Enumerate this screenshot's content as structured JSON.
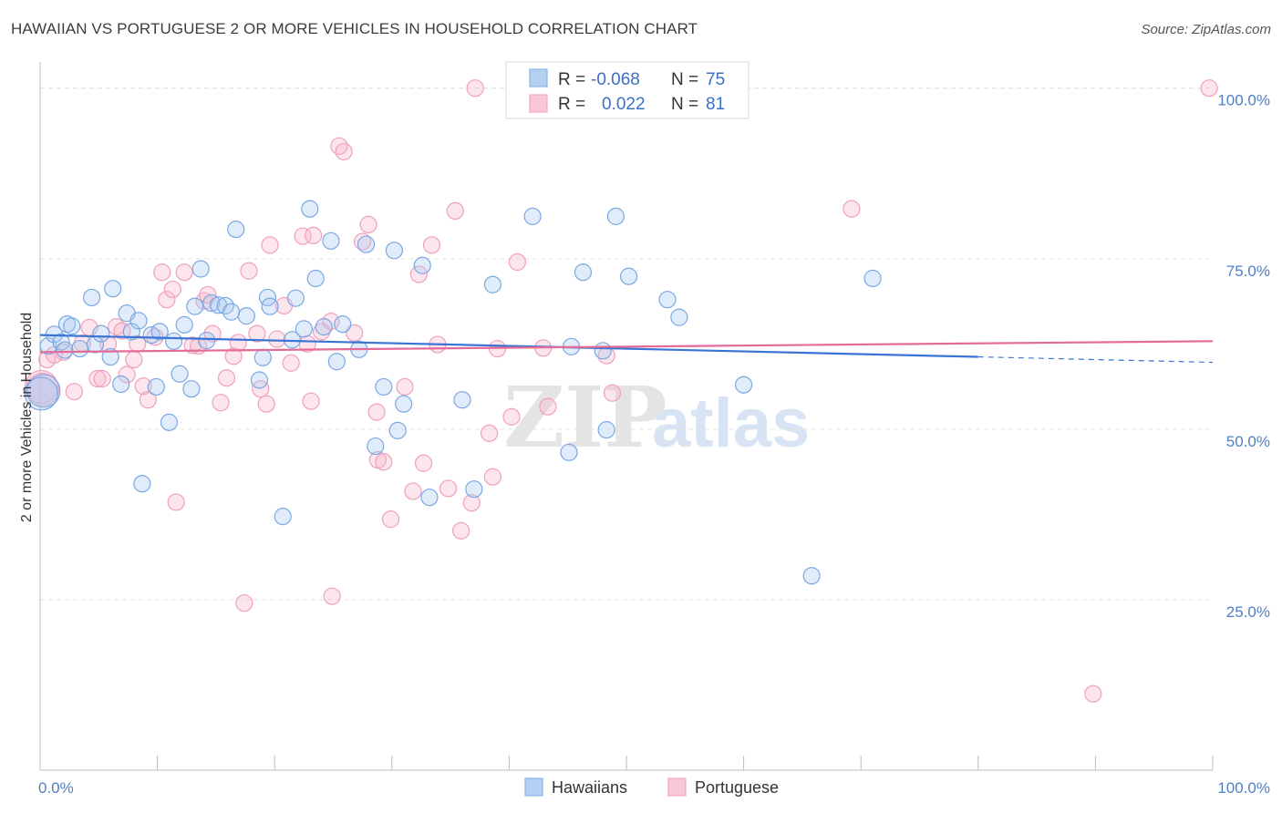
{
  "title": "HAWAIIAN VS PORTUGUESE 2 OR MORE VEHICLES IN HOUSEHOLD CORRELATION CHART",
  "source": "Source: ZipAtlas.com",
  "watermark": {
    "zip": "ZIP",
    "atlas": "atlas"
  },
  "legend_top": {
    "rows": [
      {
        "r_label": "R =",
        "r_value": "-0.068",
        "n_label": "N =",
        "n_value": "75"
      },
      {
        "r_label": "R =",
        "r_value": "0.022",
        "n_label": "N =",
        "n_value": "81"
      }
    ]
  },
  "chart_data": {
    "type": "scatter",
    "title": "HAWAIIAN VS PORTUGUESE 2 OR MORE VEHICLES IN HOUSEHOLD CORRELATION CHART",
    "xlabel": "",
    "ylabel": "2 or more Vehicles in Household",
    "xlim": [
      0,
      100
    ],
    "ylim": [
      0,
      102.5
    ],
    "x_tick_labels": [
      "0.0%",
      "100.0%"
    ],
    "y_ticks": [
      25,
      50,
      75,
      100
    ],
    "y_tick_labels": [
      "25.0%",
      "50.0%",
      "75.0%",
      "100.0%"
    ],
    "grid": true,
    "legend_placement": "bottom-center",
    "colors": {
      "Hawaiians": "#8ab4e8",
      "Portuguese": "#f4a7c0",
      "Hawaiians_line": "#3a74d4",
      "Portuguese_line": "#e46a98"
    },
    "series": [
      {
        "name": "Hawaiians",
        "R": -0.068,
        "N": 75,
        "trend": {
          "x": [
            0,
            80
          ],
          "y": [
            63.8,
            60.6
          ],
          "dashed_to": [
            100,
            59.8
          ]
        },
        "points": [
          [
            0.3,
            55.6
          ],
          [
            0.7,
            62.2
          ],
          [
            1.2,
            63.9
          ],
          [
            1.8,
            62.8
          ],
          [
            2.1,
            61.6
          ],
          [
            2.3,
            65.4
          ],
          [
            2.7,
            65.1
          ],
          [
            3.4,
            61.8
          ],
          [
            4.4,
            69.3
          ],
          [
            4.7,
            62.4
          ],
          [
            5.2,
            64.0
          ],
          [
            6.0,
            60.6
          ],
          [
            6.2,
            70.6
          ],
          [
            6.9,
            56.6
          ],
          [
            7.4,
            67.0
          ],
          [
            7.8,
            64.3
          ],
          [
            8.4,
            65.9
          ],
          [
            8.7,
            42.0
          ],
          [
            9.5,
            63.8
          ],
          [
            9.9,
            56.2
          ],
          [
            10.2,
            64.3
          ],
          [
            11.0,
            51.0
          ],
          [
            11.4,
            62.9
          ],
          [
            11.9,
            58.1
          ],
          [
            12.3,
            65.3
          ],
          [
            12.9,
            55.9
          ],
          [
            13.2,
            68.0
          ],
          [
            13.7,
            73.5
          ],
          [
            14.2,
            63.0
          ],
          [
            14.6,
            68.5
          ],
          [
            15.2,
            68.2
          ],
          [
            15.8,
            68.1
          ],
          [
            16.3,
            67.2
          ],
          [
            16.7,
            79.3
          ],
          [
            17.6,
            66.6
          ],
          [
            18.7,
            57.2
          ],
          [
            19.0,
            60.5
          ],
          [
            19.4,
            69.3
          ],
          [
            19.6,
            68.0
          ],
          [
            20.7,
            37.2
          ],
          [
            21.5,
            63.1
          ],
          [
            21.8,
            69.2
          ],
          [
            22.5,
            64.7
          ],
          [
            23.0,
            82.3
          ],
          [
            23.5,
            72.1
          ],
          [
            24.2,
            65.0
          ],
          [
            24.8,
            77.6
          ],
          [
            25.3,
            59.9
          ],
          [
            25.8,
            65.4
          ],
          [
            27.2,
            61.7
          ],
          [
            27.8,
            77.1
          ],
          [
            28.6,
            47.5
          ],
          [
            29.3,
            56.2
          ],
          [
            30.2,
            76.2
          ],
          [
            30.5,
            49.8
          ],
          [
            31.0,
            53.7
          ],
          [
            32.6,
            74.0
          ],
          [
            33.2,
            40.0
          ],
          [
            36.0,
            54.3
          ],
          [
            37.0,
            41.2
          ],
          [
            38.6,
            71.2
          ],
          [
            42.0,
            81.2
          ],
          [
            45.1,
            46.6
          ],
          [
            45.3,
            62.1
          ],
          [
            46.3,
            73.0
          ],
          [
            48.0,
            61.5
          ],
          [
            48.3,
            49.9
          ],
          [
            49.1,
            81.2
          ],
          [
            50.2,
            72.4
          ],
          [
            53.5,
            69.0
          ],
          [
            54.5,
            66.4
          ],
          [
            60.0,
            56.5
          ],
          [
            65.8,
            28.5
          ],
          [
            71.0,
            72.1
          ],
          [
            0.1,
            55.2
          ]
        ]
      },
      {
        "name": "Portuguese",
        "R": 0.022,
        "N": 81,
        "trend": {
          "x": [
            0,
            100
          ],
          "y": [
            61.3,
            62.9
          ]
        },
        "points": [
          [
            0.2,
            55.8
          ],
          [
            0.6,
            60.2
          ],
          [
            1.2,
            60.9
          ],
          [
            2.0,
            61.3
          ],
          [
            2.9,
            55.5
          ],
          [
            3.6,
            62.6
          ],
          [
            4.2,
            64.9
          ],
          [
            4.9,
            57.4
          ],
          [
            5.3,
            57.4
          ],
          [
            5.8,
            62.5
          ],
          [
            6.5,
            65.0
          ],
          [
            7.0,
            64.4
          ],
          [
            7.4,
            58.0
          ],
          [
            8.0,
            60.2
          ],
          [
            8.3,
            62.5
          ],
          [
            8.8,
            56.3
          ],
          [
            9.2,
            54.3
          ],
          [
            9.8,
            63.5
          ],
          [
            10.4,
            73.0
          ],
          [
            10.8,
            69.0
          ],
          [
            11.3,
            70.5
          ],
          [
            11.6,
            39.3
          ],
          [
            12.3,
            73.0
          ],
          [
            13.0,
            62.3
          ],
          [
            13.5,
            62.2
          ],
          [
            14.0,
            68.8
          ],
          [
            14.3,
            69.7
          ],
          [
            14.7,
            64.0
          ],
          [
            15.4,
            53.9
          ],
          [
            15.9,
            57.5
          ],
          [
            16.5,
            60.7
          ],
          [
            16.9,
            62.7
          ],
          [
            17.4,
            24.5
          ],
          [
            17.8,
            73.2
          ],
          [
            18.5,
            64.0
          ],
          [
            18.8,
            55.9
          ],
          [
            19.3,
            53.7
          ],
          [
            19.6,
            77.0
          ],
          [
            20.2,
            63.2
          ],
          [
            20.8,
            68.1
          ],
          [
            21.4,
            59.7
          ],
          [
            22.4,
            78.3
          ],
          [
            22.8,
            62.5
          ],
          [
            23.1,
            54.1
          ],
          [
            23.3,
            78.4
          ],
          [
            24.0,
            64.3
          ],
          [
            24.8,
            65.8
          ],
          [
            24.9,
            25.5
          ],
          [
            25.5,
            91.5
          ],
          [
            25.9,
            90.7
          ],
          [
            26.8,
            64.1
          ],
          [
            27.5,
            77.5
          ],
          [
            28.0,
            80.0
          ],
          [
            28.7,
            52.5
          ],
          [
            28.8,
            45.5
          ],
          [
            29.3,
            45.2
          ],
          [
            29.9,
            36.8
          ],
          [
            31.1,
            56.2
          ],
          [
            31.8,
            40.9
          ],
          [
            32.3,
            72.7
          ],
          [
            32.7,
            45.0
          ],
          [
            33.4,
            77.0
          ],
          [
            33.9,
            62.4
          ],
          [
            34.8,
            41.3
          ],
          [
            35.4,
            82.0
          ],
          [
            35.9,
            35.1
          ],
          [
            36.8,
            39.2
          ],
          [
            37.1,
            100.0
          ],
          [
            38.3,
            49.4
          ],
          [
            38.6,
            43.0
          ],
          [
            39.0,
            61.8
          ],
          [
            40.2,
            51.8
          ],
          [
            40.7,
            74.5
          ],
          [
            42.9,
            61.9
          ],
          [
            43.3,
            53.3
          ],
          [
            48.3,
            60.8
          ],
          [
            48.8,
            55.3
          ],
          [
            69.2,
            82.3
          ],
          [
            89.8,
            11.2
          ],
          [
            99.7,
            100.0
          ],
          [
            0.1,
            56.2
          ]
        ]
      }
    ]
  },
  "bottom_legend": [
    "Hawaiians",
    "Portuguese"
  ]
}
